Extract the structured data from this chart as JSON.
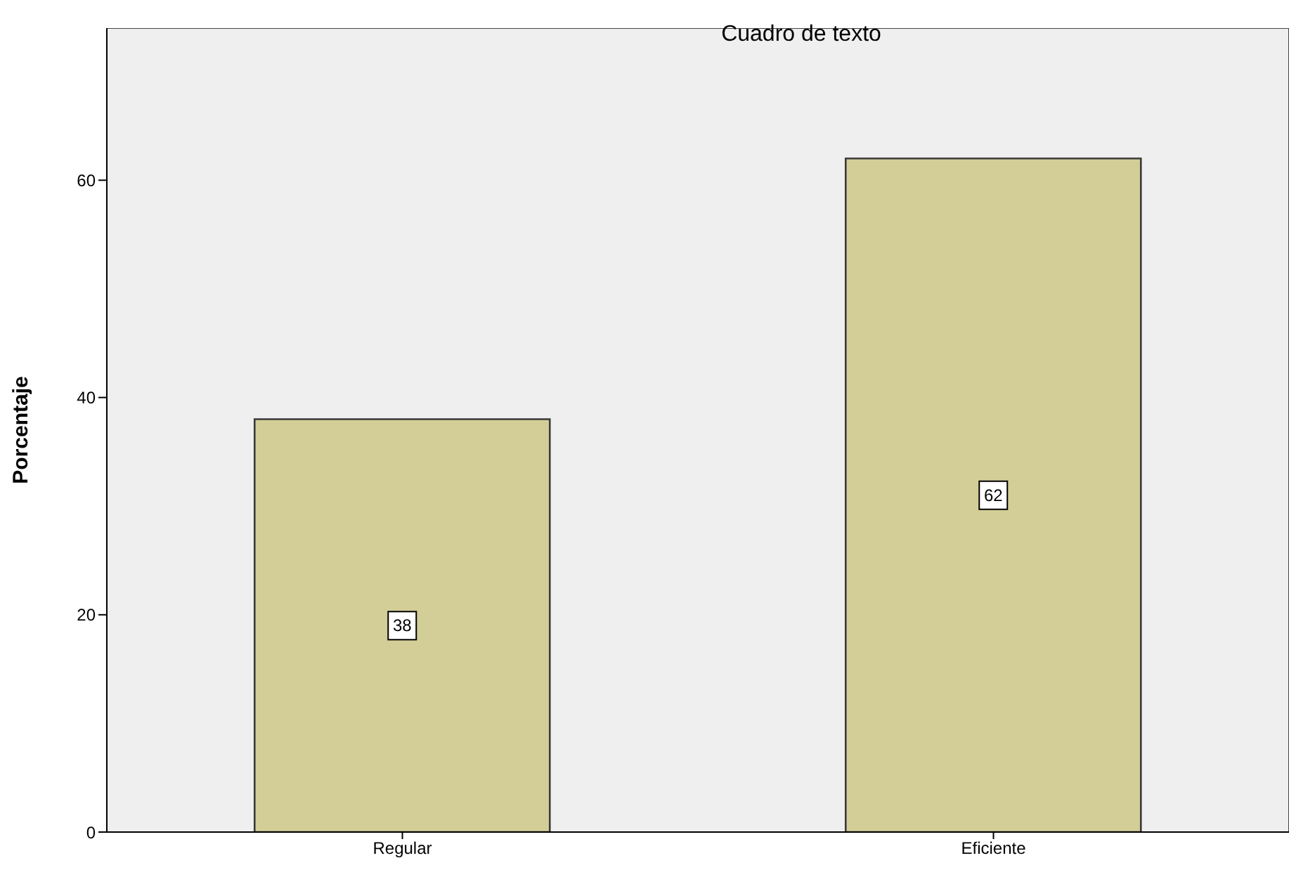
{
  "chart_data": {
    "type": "bar",
    "ylabel": "Porcentaje",
    "annotations": [
      "Cuadro de texto"
    ],
    "categories": [
      "Regular",
      "Eficiente"
    ],
    "values": [
      38,
      62
    ],
    "color": "#d3ce97",
    "ylim": [
      0,
      74
    ],
    "yticks": [
      0,
      20,
      40,
      60
    ],
    "grid": false,
    "data_labels": true
  }
}
